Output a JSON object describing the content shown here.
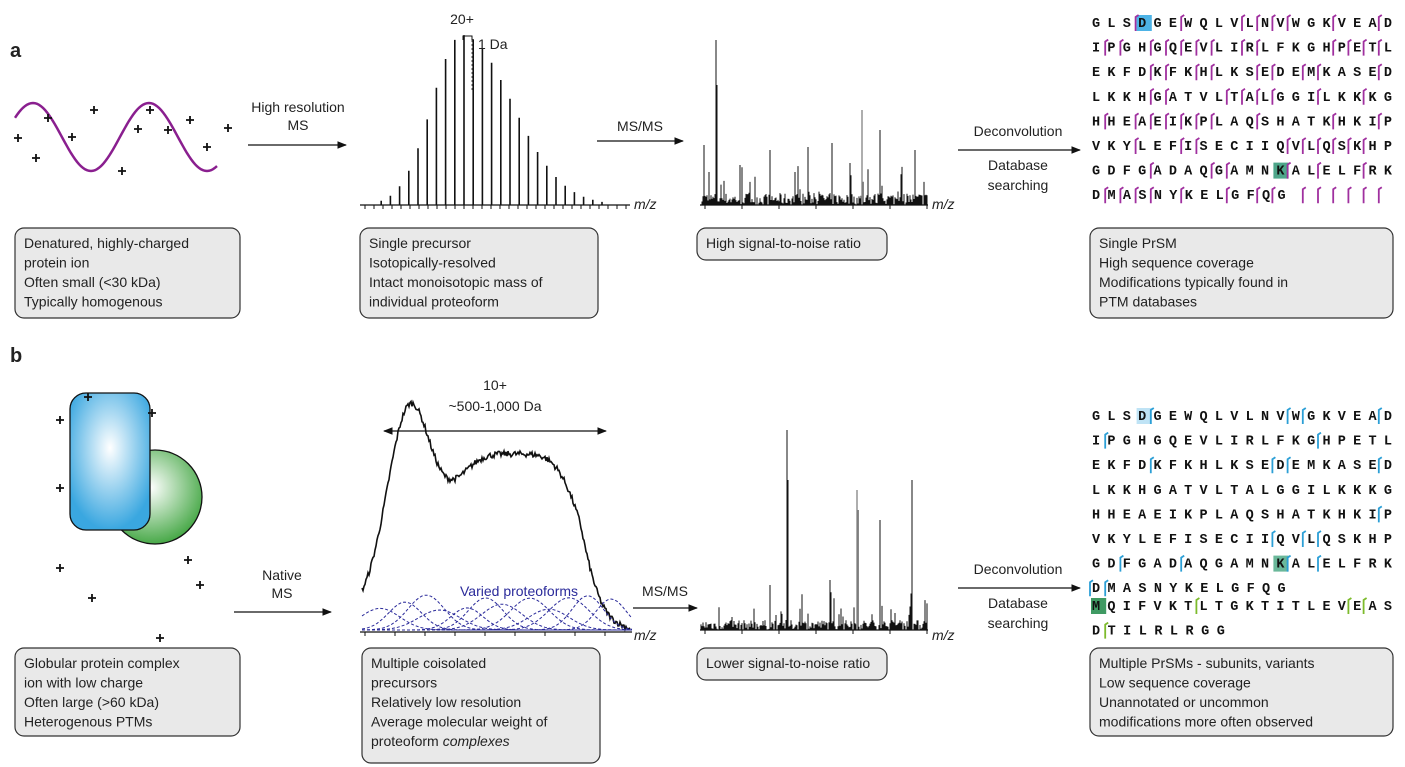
{
  "panel_a": {
    "label": "a",
    "step_1": [
      "High resolution",
      "MS"
    ],
    "step_2": "MS/MS",
    "step_3": [
      "Deconvolution",
      "Database",
      "searching"
    ],
    "precursor": {
      "charge": "20+",
      "spacing": "1 Da",
      "axis": "m/z"
    },
    "fragments": {
      "axis": "m/z"
    },
    "sequence": [
      "GLSDGEWQLVLNVWGKVEAD",
      "IPGHGQEVLIRLFKGHPETL",
      "EKFDKFKHLKSEDEMKASED",
      "LKKHGATVLTALGGILKKKG",
      "HHEAEIKPLAQSHATKHKIP",
      "VKYLEFISECIIQVLQSKHP",
      "GDFGADAQGAMNKALELFRK",
      "DMASNYKELGFQG"
    ],
    "boxes": [
      [
        "Denatured, highly-charged",
        "protein ion",
        "Often small (<30 kDa)",
        "Typically homogenous"
      ],
      [
        "Single precursor",
        "Isotopically-resolved",
        "Intact monoisotopic mass of",
        "individual proteoform"
      ],
      [
        "High signal-to-noise ratio"
      ],
      [
        "Single PrSM",
        "High sequence coverage",
        "Modifications typically found in",
        "PTM databases"
      ]
    ]
  },
  "panel_b": {
    "label": "b",
    "step_1": [
      "Native",
      "MS"
    ],
    "step_2": "MS/MS",
    "step_3": [
      "Deconvolution",
      "Database",
      "searching"
    ],
    "precursor": {
      "charge": "10+",
      "range": "~500-1,000 Da",
      "annotation": "Varied proteoforms",
      "axis": "m/z"
    },
    "fragments": {
      "axis": "m/z"
    },
    "sequence": [
      "GLSDGEWQLVLNVWGKVEAD",
      "IPGHGQEVLIRLFKGHPETL",
      "EKFDKFKHLKSEDEMKASED",
      "LKKHGATVLTALGGILKKKG",
      "HHEAEIKPLAQSHATKHKIP",
      "VKYLEFISECIIQVLQSKHP",
      "GDFGADAQGAMNKALELFRK",
      "DMASNYKELGFQG"
    ],
    "sequence_2": [
      "MQIFVKTLTGKTITLEVEAS",
      "DTILRLRGG"
    ],
    "boxes": [
      [
        "Globular protein complex",
        "ion with low charge",
        "Often large (>60 kDa)",
        "Heterogenous PTMs"
      ],
      [
        "Multiple coisolated",
        "precursors",
        "Relatively low resolution",
        "Average molecular weight of",
        {
          "text": "proteoform",
          "emphasis": "complexes"
        }
      ],
      [
        "Lower signal-to-noise ratio"
      ],
      [
        "Multiple PrSMs - subunits, variants",
        "Low sequence coverage",
        "Unannotated or uncommon",
        "modifications more often observed"
      ]
    ]
  }
}
